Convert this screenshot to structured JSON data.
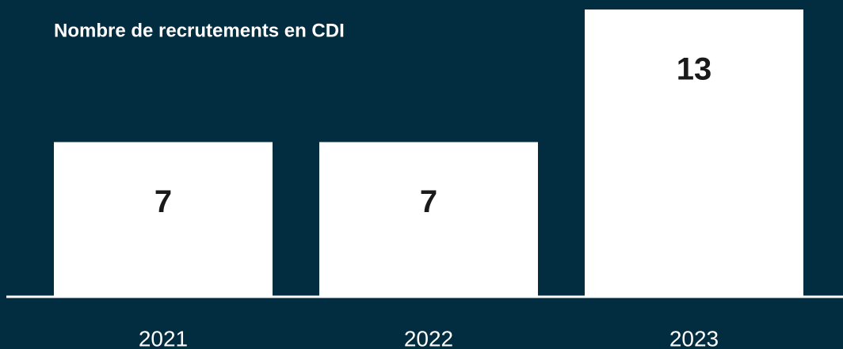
{
  "chart_data": {
    "type": "bar",
    "title": "Nombre de recrutements en CDI",
    "categories": [
      "2021",
      "2022",
      "2023"
    ],
    "values": [
      7,
      7,
      13
    ],
    "color": "#ffffff"
  }
}
